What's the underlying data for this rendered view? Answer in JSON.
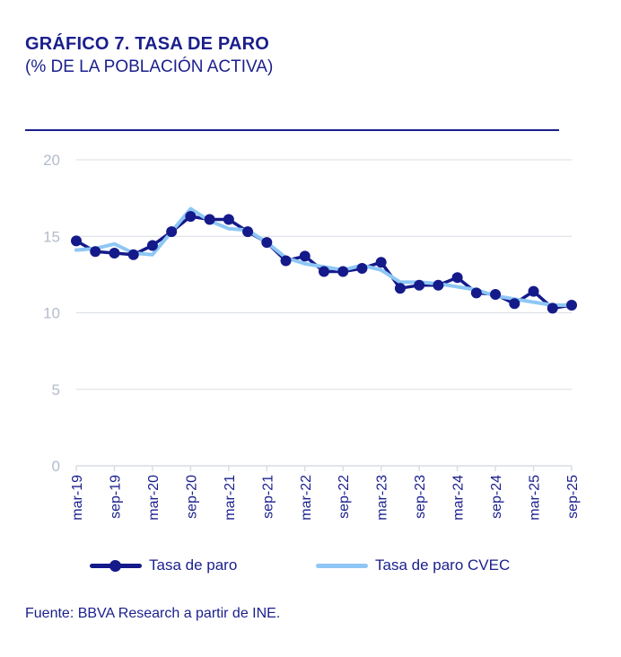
{
  "header": {
    "title": "GRÁFICO 7. TASA DE PARO",
    "subtitle": "(% DE LA POBLACIÓN ACTIVA)"
  },
  "source": "Fuente: BBVA Research a partir de INE.",
  "colors": {
    "series_main": "#141a8a",
    "series_cvec": "#8ec7f5",
    "axis_text": "#1a1f8c",
    "y_tick_text": "#b4bccb",
    "grid": "#d9dde3",
    "rule": "#1a1f8c"
  },
  "chart_data": {
    "type": "line",
    "title": "GRÁFICO 7. TASA DE PARO",
    "subtitle": "(% DE LA POBLACIÓN ACTIVA)",
    "xlabel": "",
    "ylabel": "",
    "ylim": [
      0,
      20
    ],
    "yticks": [
      0,
      5,
      10,
      15,
      20
    ],
    "grid": true,
    "legend": "bottom",
    "x": [
      "mar-19",
      "jun-19",
      "sep-19",
      "dic-19",
      "mar-20",
      "jun-20",
      "sep-20",
      "dic-20",
      "mar-21",
      "jun-21",
      "sep-21",
      "dic-21",
      "mar-22",
      "jun-22",
      "sep-22",
      "dic-22",
      "mar-23",
      "jun-23",
      "sep-23",
      "dic-23",
      "mar-24",
      "jun-24",
      "sep-24",
      "dic-24",
      "mar-25",
      "jun-25",
      "sep-25"
    ],
    "xtick_labels": [
      "mar-19",
      "sep-19",
      "mar-20",
      "sep-20",
      "mar-21",
      "sep-21",
      "mar-22",
      "sep-22",
      "mar-23",
      "sep-23",
      "mar-24",
      "sep-24",
      "mar-25",
      "sep-25"
    ],
    "series": [
      {
        "name": "Tasa de paro",
        "values": [
          14.7,
          14.0,
          13.9,
          13.8,
          14.4,
          15.3,
          16.3,
          16.1,
          16.1,
          15.3,
          14.6,
          13.4,
          13.7,
          12.7,
          12.7,
          12.9,
          13.3,
          11.6,
          11.8,
          11.8,
          12.3,
          11.3,
          11.2,
          10.6,
          11.4,
          10.3,
          10.5
        ],
        "markers": true
      },
      {
        "name": "Tasa de paro CVEC",
        "values": [
          14.1,
          14.2,
          14.5,
          13.9,
          13.8,
          15.3,
          16.8,
          16.0,
          15.5,
          15.4,
          14.6,
          13.6,
          13.2,
          13.0,
          12.8,
          13.1,
          12.8,
          12.0,
          12.0,
          11.9,
          11.7,
          11.5,
          11.1,
          10.9,
          10.7,
          10.5,
          10.5
        ],
        "markers": false
      }
    ]
  }
}
